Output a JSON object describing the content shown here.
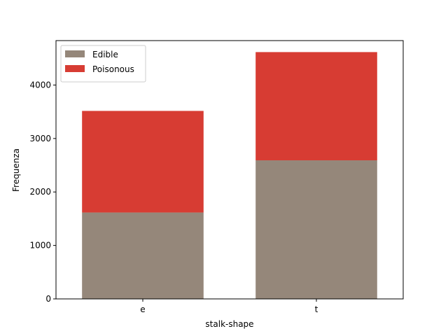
{
  "chart_data": {
    "type": "bar",
    "stacked": true,
    "categories": [
      "e",
      "t"
    ],
    "series": [
      {
        "name": "Edible",
        "values": [
          1616,
          2592
        ],
        "color": "#95877a"
      },
      {
        "name": "Poisonous",
        "values": [
          1900,
          2024
        ],
        "color": "#d73c33"
      }
    ],
    "xlabel": "stalk-shape",
    "ylabel": "Frequenza",
    "ylim": [
      0,
      4831
    ],
    "yticks": [
      0,
      1000,
      2000,
      3000,
      4000
    ],
    "grid": false,
    "legend_position": "top-left"
  }
}
